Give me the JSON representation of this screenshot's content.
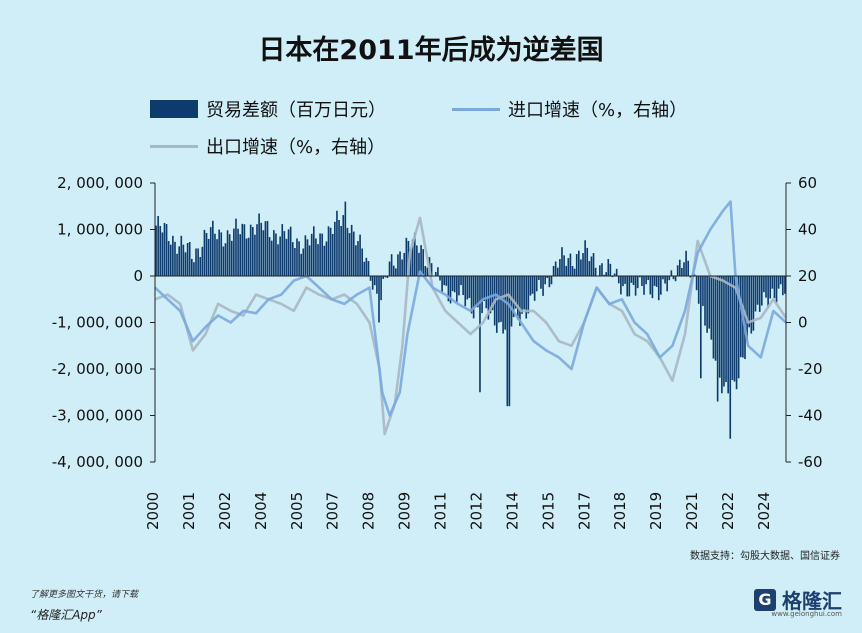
{
  "title": "日本在2011年后成为逆差国",
  "legend": {
    "trade": "贸易差额（百万日元）",
    "import": "进口增速（%，右轴）",
    "export": "出口增速（%，右轴）"
  },
  "source": "数据支持：勾股大数据、国信证券",
  "footer": {
    "note": "了解更多图文干货，请下载",
    "app": "“格隆汇App”",
    "logo": "格隆汇",
    "logo_icon": "G",
    "logo_sub": "www.gelonghui.com"
  },
  "colors": {
    "trade": "#0e3b6e",
    "import": "#7aa7e0",
    "export": "#a9b7c2"
  },
  "chart_data": {
    "type": "bar+line",
    "title": "日本在2011年后成为逆差国",
    "x_labels": [
      "2000",
      "2001",
      "2002",
      "2004",
      "2005",
      "2007",
      "2008",
      "2009",
      "2011",
      "2012",
      "2014",
      "2015",
      "2017",
      "2018",
      "2019",
      "2021",
      "2022",
      "2024"
    ],
    "x_range": [
      2000.0,
      2025.0
    ],
    "y_left": {
      "ticks": [
        "2, 000, 000",
        "1, 000, 000",
        "0",
        "-1, 000, 000",
        "-2, 000, 000",
        "-3, 000, 000",
        "-4, 000, 000"
      ],
      "range": [
        -4000000,
        2000000
      ]
    },
    "y_right": {
      "ticks": [
        "60",
        "40",
        "20",
        "0",
        "-20",
        "-40",
        "-60"
      ],
      "range": [
        -60,
        60
      ]
    },
    "trade_balance_anchors": [
      [
        2000.0,
        1100000
      ],
      [
        2001.0,
        700000
      ],
      [
        2001.5,
        400000
      ],
      [
        2002.0,
        900000
      ],
      [
        2003.0,
        900000
      ],
      [
        2004.0,
        1100000
      ],
      [
        2005.0,
        900000
      ],
      [
        2006.0,
        700000
      ],
      [
        2007.0,
        1000000
      ],
      [
        2007.6,
        1300000
      ],
      [
        2008.2,
        500000
      ],
      [
        2008.6,
        0
      ],
      [
        2008.9,
        -600000
      ],
      [
        2009.3,
        200000
      ],
      [
        2009.8,
        600000
      ],
      [
        2010.5,
        700000
      ],
      [
        2011.2,
        -100000
      ],
      [
        2011.8,
        -400000
      ],
      [
        2012.5,
        -600000
      ],
      [
        2013.0,
        -800000
      ],
      [
        2014.0,
        -1100000
      ],
      [
        2014.7,
        -700000
      ],
      [
        2015.3,
        -300000
      ],
      [
        2016.0,
        300000
      ],
      [
        2017.0,
        500000
      ],
      [
        2018.0,
        100000
      ],
      [
        2018.6,
        -200000
      ],
      [
        2019.0,
        -400000
      ],
      [
        2019.5,
        -100000
      ],
      [
        2020.0,
        -500000
      ],
      [
        2020.5,
        100000
      ],
      [
        2021.0,
        300000
      ],
      [
        2021.5,
        -200000
      ],
      [
        2022.0,
        -1500000
      ],
      [
        2022.5,
        -2300000
      ],
      [
        2023.0,
        -2500000
      ],
      [
        2023.5,
        -1200000
      ],
      [
        2024.0,
        -700000
      ],
      [
        2024.5,
        -300000
      ],
      [
        2025.0,
        -400000
      ]
    ],
    "trade_balance_spikes": [
      [
        2007.55,
        1600000
      ],
      [
        2022.8,
        -3500000
      ],
      [
        2014.0,
        -2800000
      ],
      [
        2022.3,
        -2700000
      ],
      [
        2023.1,
        -2200000
      ],
      [
        2021.6,
        -2200000
      ],
      [
        2012.9,
        -2500000
      ],
      [
        2008.9,
        -1000000
      ]
    ],
    "import_growth": [
      [
        2000.0,
        15
      ],
      [
        2000.5,
        10
      ],
      [
        2001.0,
        5
      ],
      [
        2001.5,
        -8
      ],
      [
        2002.0,
        -2
      ],
      [
        2002.5,
        3
      ],
      [
        2003.0,
        0
      ],
      [
        2003.5,
        5
      ],
      [
        2004.0,
        4
      ],
      [
        2004.5,
        10
      ],
      [
        2005.0,
        12
      ],
      [
        2005.5,
        18
      ],
      [
        2006.0,
        20
      ],
      [
        2006.5,
        15
      ],
      [
        2007.0,
        10
      ],
      [
        2007.5,
        8
      ],
      [
        2008.0,
        12
      ],
      [
        2008.5,
        15
      ],
      [
        2009.0,
        -30
      ],
      [
        2009.3,
        -40
      ],
      [
        2009.7,
        -30
      ],
      [
        2010.0,
        -5
      ],
      [
        2010.5,
        22
      ],
      [
        2011.0,
        15
      ],
      [
        2011.5,
        12
      ],
      [
        2012.0,
        8
      ],
      [
        2012.5,
        5
      ],
      [
        2013.0,
        10
      ],
      [
        2013.5,
        12
      ],
      [
        2014.0,
        8
      ],
      [
        2014.5,
        0
      ],
      [
        2015.0,
        -8
      ],
      [
        2015.5,
        -12
      ],
      [
        2016.0,
        -15
      ],
      [
        2016.5,
        -20
      ],
      [
        2017.0,
        0
      ],
      [
        2017.5,
        15
      ],
      [
        2018.0,
        8
      ],
      [
        2018.5,
        10
      ],
      [
        2019.0,
        0
      ],
      [
        2019.5,
        -5
      ],
      [
        2020.0,
        -15
      ],
      [
        2020.5,
        -10
      ],
      [
        2021.0,
        5
      ],
      [
        2021.5,
        30
      ],
      [
        2022.0,
        40
      ],
      [
        2022.5,
        48
      ],
      [
        2022.8,
        52
      ],
      [
        2023.0,
        20
      ],
      [
        2023.5,
        -10
      ],
      [
        2024.0,
        -15
      ],
      [
        2024.5,
        5
      ],
      [
        2025.0,
        0
      ]
    ],
    "export_growth": [
      [
        2000.0,
        10
      ],
      [
        2000.5,
        12
      ],
      [
        2001.0,
        8
      ],
      [
        2001.5,
        -12
      ],
      [
        2002.0,
        -5
      ],
      [
        2002.5,
        8
      ],
      [
        2003.0,
        5
      ],
      [
        2003.5,
        3
      ],
      [
        2004.0,
        12
      ],
      [
        2004.5,
        10
      ],
      [
        2005.0,
        8
      ],
      [
        2005.5,
        5
      ],
      [
        2006.0,
        15
      ],
      [
        2006.5,
        12
      ],
      [
        2007.0,
        10
      ],
      [
        2007.5,
        12
      ],
      [
        2008.0,
        8
      ],
      [
        2008.5,
        0
      ],
      [
        2008.9,
        -20
      ],
      [
        2009.1,
        -48
      ],
      [
        2009.5,
        -35
      ],
      [
        2009.8,
        -10
      ],
      [
        2010.1,
        30
      ],
      [
        2010.5,
        45
      ],
      [
        2011.0,
        15
      ],
      [
        2011.5,
        5
      ],
      [
        2012.0,
        0
      ],
      [
        2012.5,
        -5
      ],
      [
        2013.0,
        0
      ],
      [
        2013.5,
        10
      ],
      [
        2014.0,
        12
      ],
      [
        2014.5,
        5
      ],
      [
        2015.0,
        5
      ],
      [
        2015.5,
        0
      ],
      [
        2016.0,
        -8
      ],
      [
        2016.5,
        -10
      ],
      [
        2017.0,
        0
      ],
      [
        2017.5,
        15
      ],
      [
        2018.0,
        8
      ],
      [
        2018.5,
        5
      ],
      [
        2019.0,
        -5
      ],
      [
        2019.5,
        -8
      ],
      [
        2020.0,
        -15
      ],
      [
        2020.5,
        -25
      ],
      [
        2021.0,
        -5
      ],
      [
        2021.5,
        35
      ],
      [
        2022.0,
        20
      ],
      [
        2022.5,
        18
      ],
      [
        2023.0,
        15
      ],
      [
        2023.5,
        0
      ],
      [
        2024.0,
        2
      ],
      [
        2024.5,
        10
      ],
      [
        2025.0,
        2
      ]
    ]
  }
}
